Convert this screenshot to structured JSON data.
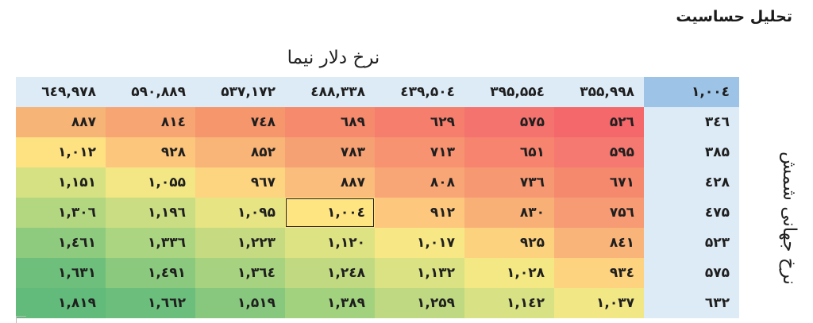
{
  "title": "تحلیل حساسیت",
  "column_axis_label": "نرخ دلار نیما",
  "row_axis_label": "نرخ جهانی شمش",
  "corner_value": "۱,۰۰٤",
  "column_headers": [
    "٦٤٩,٩٧٨",
    "۵۹۰,۸۸۹",
    "۵۳۷,۱۷۲",
    "٤۸۸,۳۳۸",
    "٤۳۹,۵۰٤",
    "۳۹۵,۵۵٤",
    "۳۵۵,۹۹۸"
  ],
  "rows": [
    {
      "header": "۳٤٦",
      "cells": [
        "۸۸۷",
        "۸۱٤",
        "۷٤۸",
        "٦۸۹",
        "٦۲۹",
        "۵۷۵",
        "۵۲٦"
      ],
      "colors": [
        "#f6b477",
        "#f7a572",
        "#f5966d",
        "#f58a6d",
        "#f57f6c",
        "#f5736f",
        "#f4686b"
      ]
    },
    {
      "header": "۳۸۵",
      "cells": [
        "۱,۰۱۲",
        "۹۲۸",
        "۸۵۲",
        "۷۸۳",
        "۷۱۳",
        "٦۵۱",
        "۵۹۵"
      ],
      "colors": [
        "#fee282",
        "#fcc77c",
        "#f9b477",
        "#f6a173",
        "#f79370",
        "#f6846e",
        "#f57970"
      ]
    },
    {
      "header": "٤۲۸",
      "cells": [
        "۱,۱۵۱",
        "۱,۰۵۵",
        "۹٦۷",
        "۸۸۷",
        "۸۰۸",
        "۷۳٦",
        "٦۷۱"
      ],
      "colors": [
        "#d6e183",
        "#f2e784",
        "#fdd480",
        "#fbbd7b",
        "#f8a675",
        "#f69972",
        "#f5896e"
      ]
    },
    {
      "header": "٤۷۵",
      "cells": [
        "۱,۳۰٦",
        "۱,۱۹٦",
        "۱,۰۹۵",
        "۱,۰۰٤",
        "۹۱۲",
        "۸۳۰",
        "۷۵٦"
      ],
      "colors": [
        "#b3d781",
        "#cbdd82",
        "#e6e483",
        "#fee582",
        "#fdc77d",
        "#f9b077",
        "#f69b73"
      ]
    },
    {
      "header": "۵۲۳",
      "cells": [
        "۱,٤٦۱",
        "۱,۳۳٦",
        "۱,۲۲۳",
        "۱,۱۲۰",
        "۱,۰۱۷",
        "۹۲۵",
        "۸٤۱"
      ],
      "colors": [
        "#8fcb7e",
        "#abd581",
        "#c6db81",
        "#dde283",
        "#f8e885",
        "#fdd27f",
        "#f9b479"
      ]
    },
    {
      "header": "۵۷۵",
      "cells": [
        "۱,٦۳۱",
        "۱,٤۹۱",
        "۱,۳٦٤",
        "۱,۲٤۸",
        "۱,۱۳۲",
        "۱,۰۲۸",
        "۹۳٤"
      ],
      "colors": [
        "#6ebf7c",
        "#8bca7e",
        "#a7d380",
        "#c1da82",
        "#dae283",
        "#f4e884",
        "#fdd37f"
      ]
    },
    {
      "header": "٦۳۲",
      "cells": [
        "۱,۸۱۹",
        "۱,٦٦۲",
        "۱,۵۱۹",
        "۱,۳۸۹",
        "۱,۲۵۹",
        "۱,۱٤۲",
        "۱,۰۳۷"
      ],
      "colors": [
        "#62bb7a",
        "#6bbe7b",
        "#87c87e",
        "#a3d27f",
        "#bed981",
        "#d8e183",
        "#f1e785"
      ]
    }
  ],
  "selected_value": "۱,۰۰٤"
}
